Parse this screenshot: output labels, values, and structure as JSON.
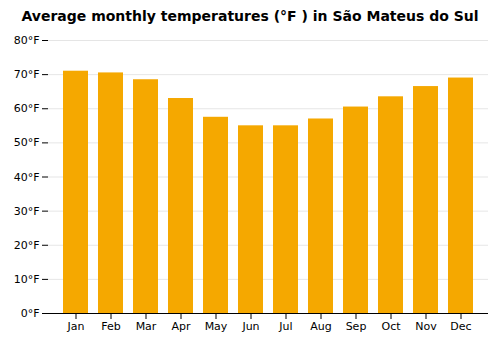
{
  "chart_data": {
    "type": "bar",
    "title": "Average monthly temperatures (°F ) in São Mateus do Sul",
    "categories": [
      "Jan",
      "Feb",
      "Mar",
      "Apr",
      "May",
      "Jun",
      "Jul",
      "Aug",
      "Sep",
      "Oct",
      "Nov",
      "Dec"
    ],
    "values": [
      71,
      70.5,
      68.5,
      63,
      57.5,
      55,
      55,
      57,
      60.5,
      63.5,
      66.5,
      69
    ],
    "color": "#F5A800",
    "ylim": [
      0,
      80
    ],
    "yticks": [
      {
        "value": 0,
        "label": "0°F"
      },
      {
        "value": 10,
        "label": "10°F"
      },
      {
        "value": 20,
        "label": "20°F"
      },
      {
        "value": 30,
        "label": "30°F"
      },
      {
        "value": 40,
        "label": "40°F"
      },
      {
        "value": 50,
        "label": "50°F"
      },
      {
        "value": 60,
        "label": "60°F"
      },
      {
        "value": 70,
        "label": "70°F"
      },
      {
        "value": 80,
        "label": "80°F"
      }
    ],
    "grid": true
  }
}
